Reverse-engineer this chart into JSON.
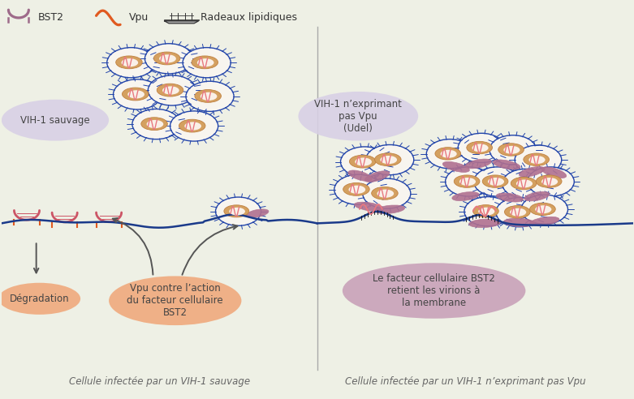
{
  "bg_color": "#eef0e5",
  "membrane_color": "#1a3a8a",
  "bst2_color": "#9e6b8a",
  "bst2_leaf_color": "#b07090",
  "vpu_color": "#e05a20",
  "left_label": "Cellule infectée par un VIH-1 sauvage",
  "right_label": "Cellule infectée par un VIH-1 n’exprimant pas Vpu",
  "left_bubble_text": "VIH-1 sauvage",
  "left_bubble_color": "#d8d0e5",
  "left_bubble2_text": "Vpu contre l’action\ndu facteur cellulaire\nBST2",
  "left_bubble2_color": "#f0a87a",
  "left_bubble3_text": "Dégradation",
  "left_bubble3_color": "#f0a87a",
  "right_bubble1_text": "VIH-1 n’exprimant\npas Vpu\n(Udel)",
  "right_bubble1_color": "#d8d0e5",
  "right_bubble2_text": "Le facteur cellulaire BST2\nretient les virions à\nla membrane",
  "right_bubble2_color": "#c8a0b8",
  "virus_outer_color": "#f8f5ef",
  "virus_ring_color": "#2244aa",
  "virus_inner_color": "#d4a060",
  "virus_core_color": "#f5e8d8",
  "virus_spiral_color": "#e87880",
  "spike_color": "#2244aa"
}
